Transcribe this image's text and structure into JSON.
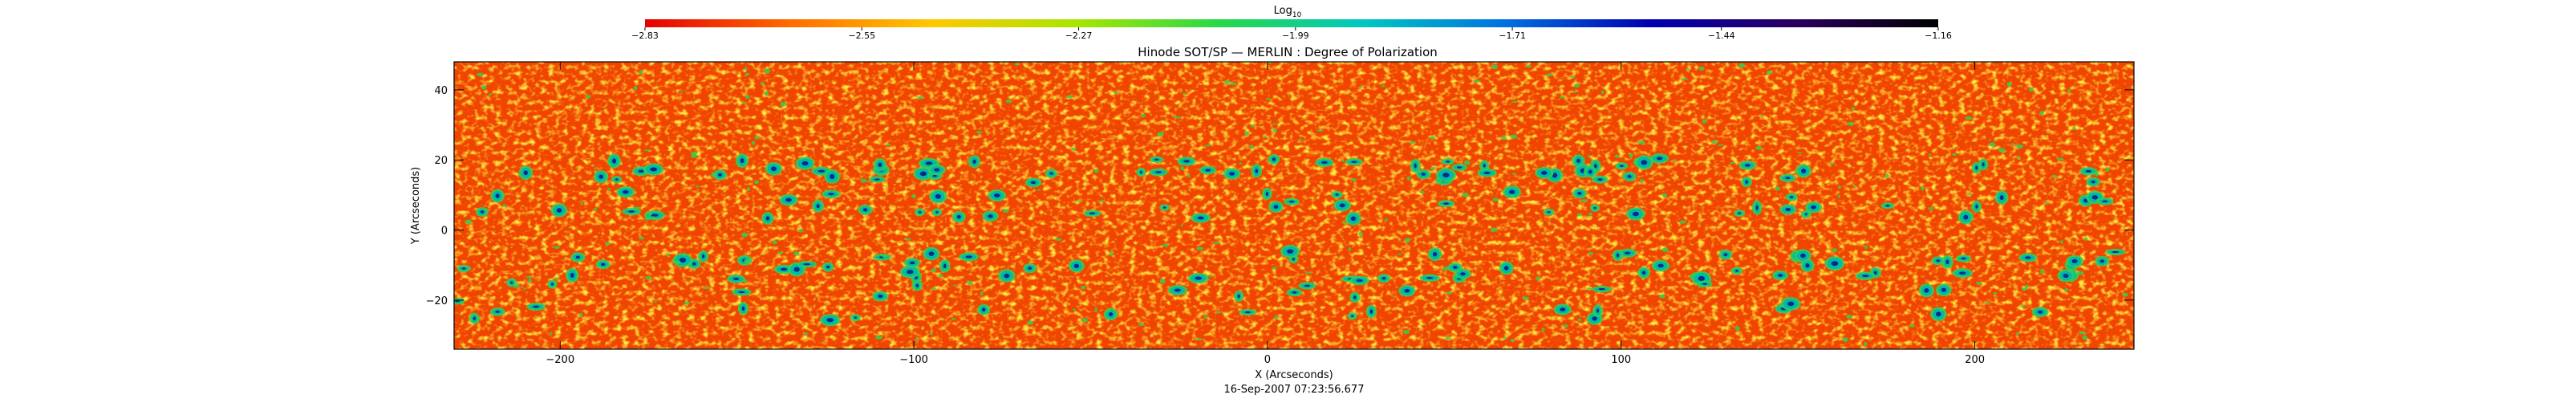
{
  "chart_data": {
    "type": "heatmap",
    "title": "Hinode SOT/SP — MERLIN : Degree of Polarization",
    "xlabel": "X (Arcseconds)",
    "ylabel": "Y (Arcseconds)",
    "footer": "16-Sep-2007  07:23:56.677",
    "xlim": [
      -230,
      245
    ],
    "ylim": [
      -34,
      48
    ],
    "xticks": [
      -200,
      -100,
      0,
      100,
      200
    ],
    "xtick_labels": [
      "−200",
      "−100",
      "0",
      "100",
      "200"
    ],
    "yticks": [
      -20,
      0,
      20,
      40
    ],
    "ytick_labels": [
      "−20",
      "0",
      "20",
      "40"
    ],
    "colorbar": {
      "label_main": "Log",
      "label_sub": "10",
      "ticks": [
        -2.83,
        -2.55,
        -2.27,
        -1.99,
        -1.71,
        -1.44,
        -1.16
      ],
      "tick_labels": [
        "−2.83",
        "−2.55",
        "−2.27",
        "−1.99",
        "−1.71",
        "−1.44",
        "−1.16"
      ],
      "range": [
        -2.83,
        -1.16
      ],
      "colors": [
        "#e60000",
        "#ff6a00",
        "#ffc800",
        "#a8e600",
        "#28d848",
        "#00c8c0",
        "#0070e0",
        "#0000b0",
        "#2a0060",
        "#000000"
      ]
    },
    "background_color": "#f04400",
    "speckle_colors": [
      "#ff8c00",
      "#ffd000",
      "#c8e800"
    ],
    "feature_colors": [
      "#30d050",
      "#00b8b0",
      "#003080"
    ]
  }
}
